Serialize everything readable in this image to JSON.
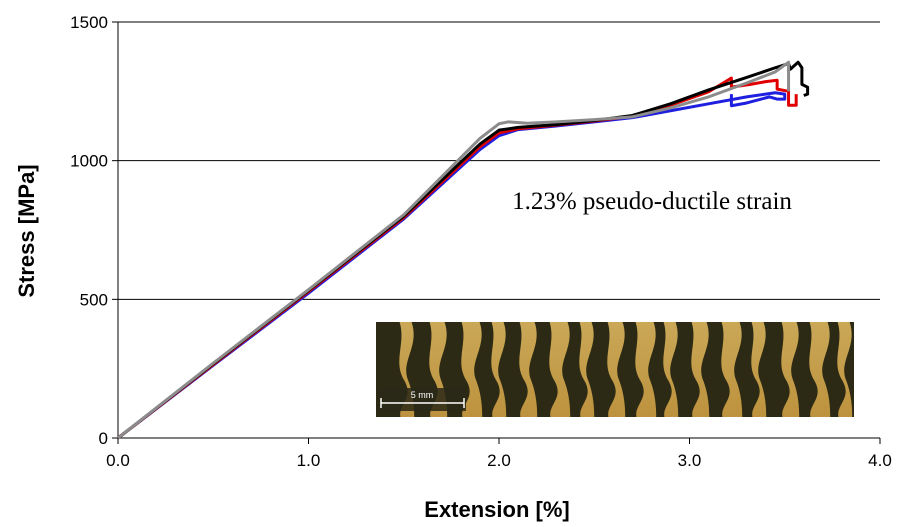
{
  "chart_data": {
    "type": "line",
    "xlabel": "Extension [%]",
    "ylabel": "Stress [MPa]",
    "xlim": [
      0,
      4.0
    ],
    "ylim": [
      0,
      1500
    ],
    "x_ticks": [
      "0.0",
      "1.0",
      "2.0",
      "3.0",
      "4.0"
    ],
    "y_ticks": [
      "0",
      "500",
      "1000",
      "1500"
    ],
    "grid": "horizontal",
    "annotation": "1.23% pseudo-ductile strain",
    "inset_scale_label": "5 mm",
    "series": [
      {
        "color": "#1f1fe0",
        "points": [
          [
            0,
            0
          ],
          [
            0.5,
            262
          ],
          [
            1.0,
            522
          ],
          [
            1.5,
            790
          ],
          [
            1.9,
            1040
          ],
          [
            2.0,
            1090
          ],
          [
            2.1,
            1112
          ],
          [
            2.3,
            1125
          ],
          [
            2.5,
            1140
          ],
          [
            2.7,
            1155
          ],
          [
            2.9,
            1180
          ],
          [
            3.1,
            1205
          ],
          [
            3.3,
            1230
          ],
          [
            3.45,
            1245
          ],
          [
            3.5,
            1240
          ],
          [
            3.5,
            1222
          ],
          [
            3.46,
            1222
          ],
          [
            3.42,
            1230
          ],
          [
            3.3,
            1208
          ],
          [
            3.22,
            1198
          ],
          [
            3.22,
            1240
          ]
        ]
      },
      {
        "color": "#e00000",
        "points": [
          [
            0,
            0
          ],
          [
            0.5,
            265
          ],
          [
            1.0,
            528
          ],
          [
            1.5,
            795
          ],
          [
            1.9,
            1050
          ],
          [
            2.0,
            1100
          ],
          [
            2.1,
            1115
          ],
          [
            2.3,
            1128
          ],
          [
            2.5,
            1143
          ],
          [
            2.7,
            1160
          ],
          [
            2.9,
            1200
          ],
          [
            3.1,
            1248
          ],
          [
            3.22,
            1298
          ],
          [
            3.22,
            1265
          ],
          [
            3.32,
            1275
          ],
          [
            3.4,
            1285
          ],
          [
            3.46,
            1290
          ],
          [
            3.46,
            1258
          ],
          [
            3.52,
            1250
          ],
          [
            3.52,
            1200
          ],
          [
            3.56,
            1200
          ],
          [
            3.56,
            1240
          ]
        ]
      },
      {
        "color": "#000000",
        "points": [
          [
            0,
            0
          ],
          [
            0.5,
            268
          ],
          [
            1.0,
            532
          ],
          [
            1.5,
            800
          ],
          [
            1.9,
            1060
          ],
          [
            2.0,
            1110
          ],
          [
            2.1,
            1120
          ],
          [
            2.3,
            1130
          ],
          [
            2.5,
            1145
          ],
          [
            2.7,
            1163
          ],
          [
            2.9,
            1205
          ],
          [
            3.1,
            1255
          ],
          [
            3.3,
            1300
          ],
          [
            3.45,
            1335
          ],
          [
            3.52,
            1350
          ],
          [
            3.53,
            1330
          ],
          [
            3.57,
            1355
          ],
          [
            3.59,
            1335
          ],
          [
            3.59,
            1275
          ],
          [
            3.62,
            1265
          ],
          [
            3.62,
            1240
          ],
          [
            3.6,
            1235
          ]
        ]
      },
      {
        "color": "#8c8c8c",
        "points": [
          [
            0,
            0
          ],
          [
            0.5,
            270
          ],
          [
            1.0,
            535
          ],
          [
            1.5,
            805
          ],
          [
            1.9,
            1080
          ],
          [
            2.0,
            1133
          ],
          [
            2.05,
            1140
          ],
          [
            2.15,
            1135
          ],
          [
            2.3,
            1140
          ],
          [
            2.5,
            1148
          ],
          [
            2.7,
            1158
          ],
          [
            2.9,
            1190
          ],
          [
            3.1,
            1230
          ],
          [
            3.3,
            1280
          ],
          [
            3.45,
            1320
          ],
          [
            3.52,
            1355
          ],
          [
            3.52,
            1250
          ]
        ]
      }
    ]
  }
}
